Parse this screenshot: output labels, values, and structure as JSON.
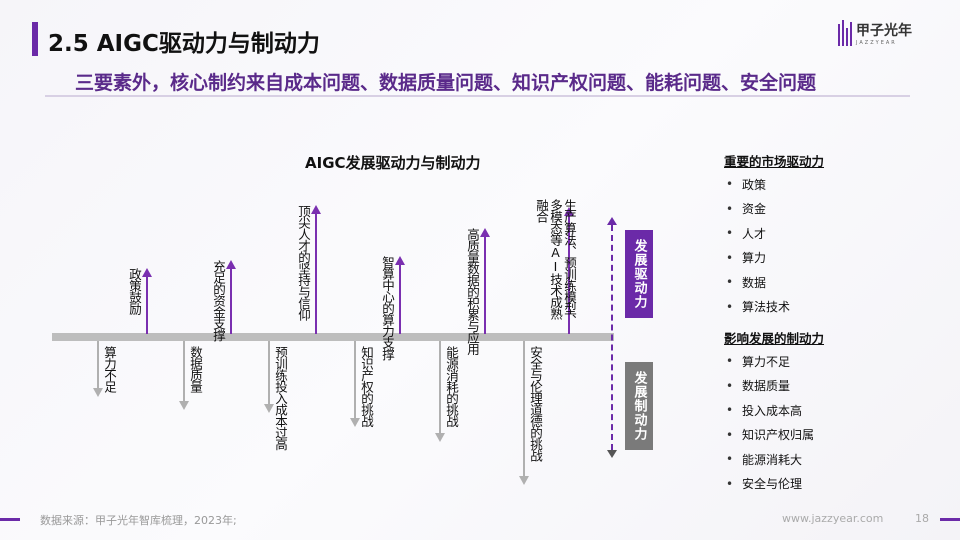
{
  "header": {
    "title": "2.5 AIGC驱动力与制动力",
    "subtitle": "三要素外，核心制约来自成本问题、数据质量问题、知识产权问题、能耗问题、安全问题"
  },
  "logo": {
    "name": "甲子光年",
    "tagline": "JAZZYEAR"
  },
  "diagram": {
    "title": "AIGC发展驱动力与制动力",
    "drivers": [
      "政策鼓励",
      "充足的资金支撑",
      "顶尖人才的坚持与信仰",
      "智算中心的算力支撑",
      "高质量数据的积累与应用",
      "生产算法、预训练模型、多模态等AI技术成熟融合"
    ],
    "constraints": [
      "算力不足",
      "数据质量",
      "预训练投入成本过高",
      "知识产权的挑战",
      "能源消耗的挑战",
      "安全与伦理道德的挑战"
    ],
    "drive_label": "发展驱动力",
    "constraint_label": "发展制动力",
    "colors": {
      "drive": "#6b2aa8",
      "constraint": "#7a7a7a"
    }
  },
  "sidebar": {
    "drivers_heading": "重要的市场驱动力",
    "drivers": [
      "政策",
      "资金",
      "人才",
      "算力",
      "数据",
      "算法技术"
    ],
    "constraints_heading": "影响发展的制动力",
    "constraints": [
      "算力不足",
      "数据质量",
      "投入成本高",
      "知识产权归属",
      "能源消耗大",
      "安全与伦理"
    ]
  },
  "footer": {
    "source": "数据来源：甲子光年智库梳理，2023年;",
    "url": "www.jazzyear.com",
    "page": "18"
  }
}
